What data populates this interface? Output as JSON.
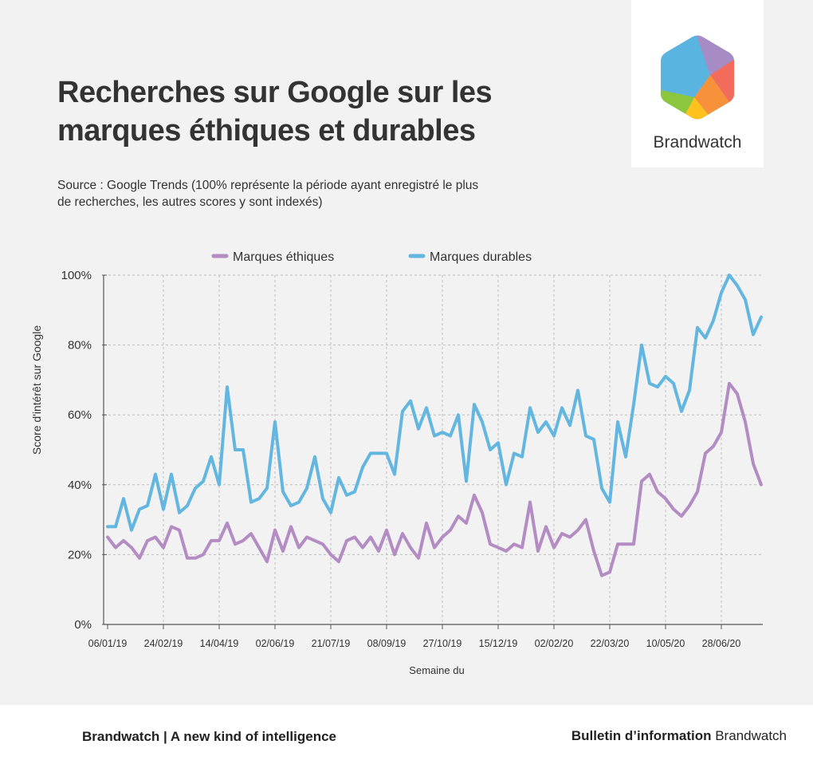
{
  "page": {
    "title": "Recherches sur Google sur les marques éthiques et durables",
    "subtitle": "Source : Google Trends (100% représente la période ayant enregistré le plus de recherches, les autres scores y sont indexés)"
  },
  "logo": {
    "text": "Brandwatch",
    "icon": "hexagon-logo-icon"
  },
  "footer": {
    "left": "Brandwatch | A new kind of intelligence",
    "right_bold": "Bulletin d’information",
    "right_normal": " Brandwatch"
  },
  "chart_data": {
    "type": "line",
    "xlabel": "Semaine du",
    "ylabel": "Score d'intérêt sur Google",
    "ylim": [
      0,
      100
    ],
    "yticks": [
      "0%",
      "20%",
      "40%",
      "60%",
      "80%",
      "100%"
    ],
    "ytick_values": [
      0,
      20,
      40,
      60,
      80,
      100
    ],
    "xticks": [
      "06/01/19",
      "24/02/19",
      "14/04/19",
      "02/06/19",
      "21/07/19",
      "08/09/19",
      "27/10/19",
      "15/12/19",
      "02/02/20",
      "22/03/20",
      "10/05/20",
      "28/06/20"
    ],
    "xtick_index": [
      0,
      7,
      14,
      21,
      28,
      35,
      42,
      49,
      56,
      63,
      70,
      77
    ],
    "grid": true,
    "legend_position": "top",
    "series": [
      {
        "name": "Marques éthiques",
        "color": "#b48cc4",
        "values": [
          25,
          22,
          24,
          22,
          19,
          24,
          25,
          22,
          28,
          27,
          19,
          19,
          20,
          24,
          24,
          29,
          23,
          24,
          26,
          22,
          18,
          27,
          21,
          28,
          22,
          25,
          24,
          23,
          20,
          18,
          24,
          25,
          22,
          25,
          21,
          27,
          20,
          26,
          22,
          19,
          29,
          22,
          25,
          27,
          31,
          29,
          37,
          32,
          23,
          22,
          21,
          23,
          22,
          35,
          21,
          28,
          22,
          26,
          25,
          27,
          30,
          21,
          14,
          15,
          23,
          23,
          23,
          41,
          43,
          38,
          36,
          33,
          31,
          34,
          38,
          49,
          51,
          55,
          69,
          66,
          58,
          46,
          40
        ]
      },
      {
        "name": "Marques durables",
        "color": "#63b6e0",
        "values": [
          28,
          28,
          36,
          27,
          33,
          34,
          43,
          33,
          43,
          32,
          34,
          39,
          41,
          48,
          40,
          68,
          50,
          50,
          35,
          36,
          39,
          58,
          38,
          34,
          35,
          39,
          48,
          36,
          32,
          42,
          37,
          38,
          45,
          49,
          49,
          49,
          43,
          61,
          64,
          56,
          62,
          54,
          55,
          54,
          60,
          41,
          63,
          58,
          50,
          52,
          40,
          49,
          48,
          62,
          55,
          58,
          54,
          62,
          57,
          67,
          54,
          53,
          39,
          35,
          58,
          48,
          63,
          80,
          69,
          68,
          71,
          69,
          61,
          67,
          85,
          82,
          87,
          95,
          100,
          97,
          93,
          83,
          88
        ]
      }
    ]
  }
}
